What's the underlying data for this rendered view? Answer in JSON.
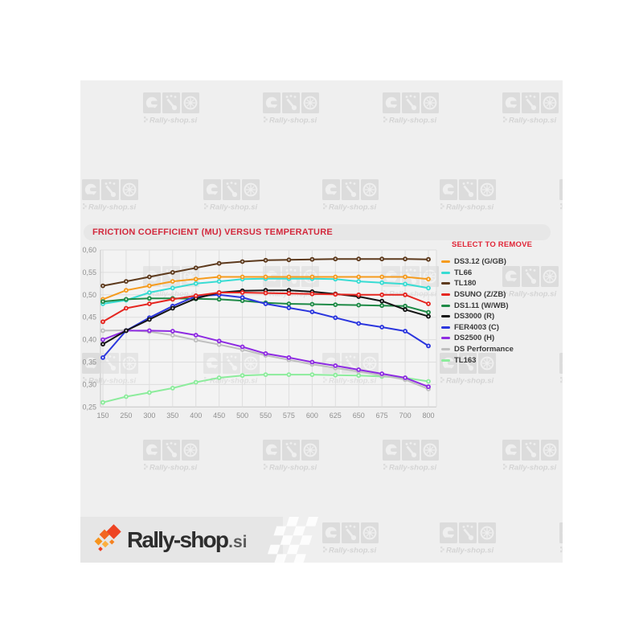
{
  "page": {
    "background": "#ffffff",
    "content_background": "#efefef"
  },
  "title": {
    "text": "FRICTION COEFFICIENT (MU) VERSUS TEMPERATURE",
    "color": "#d2293d",
    "bar_background": "#e7e7e7"
  },
  "legend": {
    "title": "SELECT TO REMOVE",
    "title_color": "#e02537"
  },
  "watermark": {
    "label": "Rally-shop.si",
    "color": "#dcdcdc",
    "icons": [
      "helmet-icon",
      "gauge-icon",
      "wheel-icon"
    ]
  },
  "footer": {
    "logo_text": "Rally-shop",
    "logo_tld": ".si"
  },
  "chart_data": {
    "type": "line",
    "title": "FRICTION COEFFICIENT (MU) VERSUS TEMPERATURE",
    "categories": [
      "150",
      "250",
      "300",
      "350",
      "400",
      "450",
      "500",
      "550",
      "575",
      "600",
      "625",
      "650",
      "675",
      "700",
      "800"
    ],
    "ylim": [
      0.25,
      0.6
    ],
    "ytick_labels": [
      "0,25",
      "0,30",
      "0,35",
      "0,40",
      "0,45",
      "0,50",
      "0,55",
      "0,60"
    ],
    "ytick_step": 0.05,
    "grid": true,
    "legend_position": "right",
    "series": [
      {
        "name": "DS3.12 (G/GB)",
        "color": "#f59b1e",
        "values": [
          0.49,
          0.51,
          0.52,
          0.53,
          0.535,
          0.54,
          0.54,
          0.54,
          0.54,
          0.54,
          0.54,
          0.54,
          0.54,
          0.54,
          0.535
        ]
      },
      {
        "name": "TL66",
        "color": "#38dcd3",
        "values": [
          0.48,
          0.488,
          0.505,
          0.515,
          0.525,
          0.53,
          0.535,
          0.536,
          0.536,
          0.536,
          0.535,
          0.53,
          0.527,
          0.524,
          0.515
        ]
      },
      {
        "name": "TL180",
        "color": "#5d3a1d",
        "values": [
          0.52,
          0.53,
          0.54,
          0.55,
          0.56,
          0.57,
          0.574,
          0.577,
          0.578,
          0.579,
          0.58,
          0.58,
          0.58,
          0.58,
          0.579
        ]
      },
      {
        "name": "DSUNO (Z/ZB)",
        "color": "#e52620",
        "values": [
          0.44,
          0.47,
          0.48,
          0.49,
          0.498,
          0.505,
          0.505,
          0.504,
          0.503,
          0.502,
          0.501,
          0.5,
          0.5,
          0.5,
          0.48
        ]
      },
      {
        "name": "DS1.11 (W/WB)",
        "color": "#1e8a46",
        "values": [
          0.485,
          0.49,
          0.492,
          0.492,
          0.491,
          0.49,
          0.487,
          0.482,
          0.48,
          0.479,
          0.478,
          0.477,
          0.476,
          0.475,
          0.461
        ]
      },
      {
        "name": "DS3000 (R)",
        "color": "#141414",
        "values": [
          0.39,
          0.42,
          0.445,
          0.47,
          0.492,
          0.505,
          0.509,
          0.51,
          0.51,
          0.507,
          0.502,
          0.496,
          0.486,
          0.467,
          0.452
        ]
      },
      {
        "name": "FER4003 (C)",
        "color": "#2b36de",
        "values": [
          0.36,
          0.42,
          0.449,
          0.475,
          0.497,
          0.5,
          0.494,
          0.48,
          0.471,
          0.462,
          0.449,
          0.436,
          0.428,
          0.419,
          0.386
        ]
      },
      {
        "name": "DS2500 (H)",
        "color": "#8e2be2",
        "values": [
          0.4,
          0.42,
          0.42,
          0.419,
          0.41,
          0.397,
          0.384,
          0.369,
          0.36,
          0.35,
          0.342,
          0.333,
          0.324,
          0.315,
          0.295
        ]
      },
      {
        "name": "DS Performance",
        "color": "#bfbfbf",
        "values": [
          0.42,
          0.421,
          0.418,
          0.41,
          0.399,
          0.389,
          0.378,
          0.365,
          0.355,
          0.345,
          0.337,
          0.329,
          0.32,
          0.311,
          0.29
        ]
      },
      {
        "name": "TL163",
        "color": "#8cec9c",
        "values": [
          0.26,
          0.273,
          0.282,
          0.292,
          0.305,
          0.315,
          0.32,
          0.322,
          0.322,
          0.322,
          0.321,
          0.32,
          0.318,
          0.315,
          0.307
        ]
      }
    ]
  }
}
